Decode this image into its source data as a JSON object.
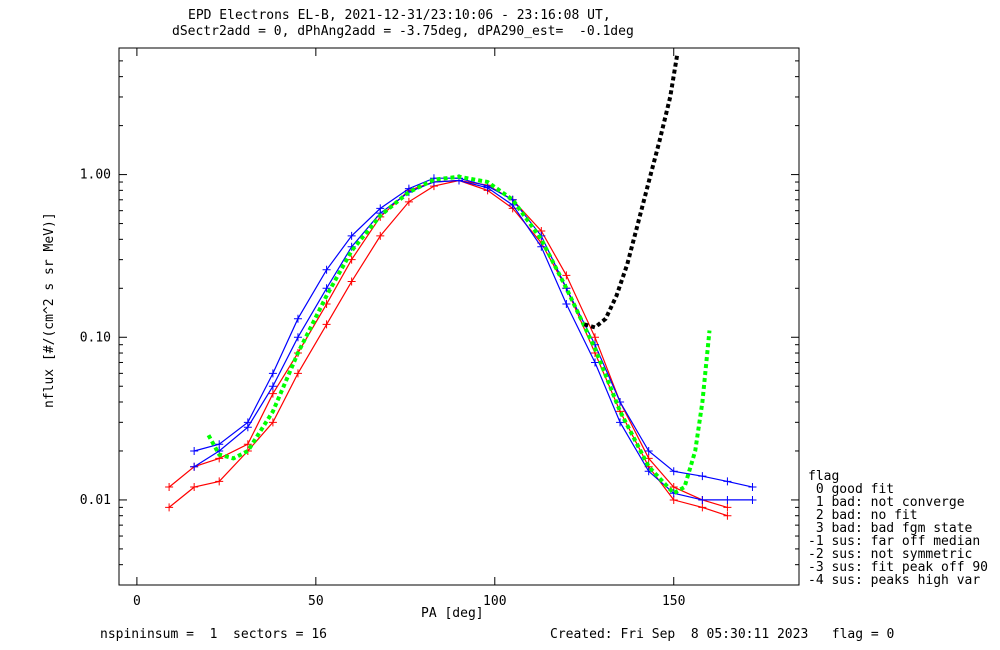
{
  "chart_data": {
    "type": "line",
    "title": "EPD Electrons EL-B, 2021-12-31/23:10:06 - 23:16:08 UT,",
    "subtitle": "dSectr2add = 0, dPhAng2add = -3.75deg, dPA290_est=  -0.1deg",
    "xlabel": "PA [deg]",
    "ylabel": "nflux [#/(cm^2 s sr MeV)]",
    "xlim": [
      -5,
      185
    ],
    "ylim": [
      0.003,
      6
    ],
    "yscale": "log",
    "x_ticks": [
      "0",
      "50",
      "100",
      "150"
    ],
    "y_ticks": [
      "0.01",
      "0.10",
      "1.00"
    ],
    "series": [
      {
        "color": "#ff0000",
        "values": [
          [
            9,
            0.012
          ],
          [
            16,
            0.016
          ],
          [
            23,
            0.018
          ],
          [
            31,
            0.022
          ],
          [
            38,
            0.045
          ],
          [
            45,
            0.08
          ],
          [
            53,
            0.16
          ],
          [
            60,
            0.3
          ],
          [
            68,
            0.55
          ],
          [
            76,
            0.8
          ],
          [
            83,
            0.9
          ],
          [
            90,
            0.92
          ],
          [
            98,
            0.8
          ],
          [
            105,
            0.62
          ],
          [
            113,
            0.38
          ],
          [
            120,
            0.2
          ],
          [
            128,
            0.08
          ],
          [
            135,
            0.035
          ],
          [
            143,
            0.016
          ],
          [
            150,
            0.01
          ],
          [
            158,
            0.009
          ],
          [
            165,
            0.008
          ]
        ]
      },
      {
        "color": "#ff0000",
        "values": [
          [
            9,
            0.009
          ],
          [
            16,
            0.012
          ],
          [
            23,
            0.013
          ],
          [
            31,
            0.02
          ],
          [
            38,
            0.03
          ],
          [
            45,
            0.06
          ],
          [
            53,
            0.12
          ],
          [
            60,
            0.22
          ],
          [
            68,
            0.42
          ],
          [
            76,
            0.68
          ],
          [
            83,
            0.85
          ],
          [
            90,
            0.92
          ],
          [
            98,
            0.86
          ],
          [
            105,
            0.7
          ],
          [
            113,
            0.45
          ],
          [
            120,
            0.24
          ],
          [
            128,
            0.1
          ],
          [
            135,
            0.04
          ],
          [
            143,
            0.018
          ],
          [
            150,
            0.012
          ],
          [
            158,
            0.01
          ],
          [
            165,
            0.009
          ]
        ]
      },
      {
        "color": "#0000ff",
        "values": [
          [
            16,
            0.02
          ],
          [
            23,
            0.022
          ],
          [
            31,
            0.03
          ],
          [
            38,
            0.06
          ],
          [
            45,
            0.13
          ],
          [
            53,
            0.26
          ],
          [
            60,
            0.42
          ],
          [
            68,
            0.62
          ],
          [
            76,
            0.82
          ],
          [
            83,
            0.95
          ],
          [
            90,
            0.95
          ],
          [
            98,
            0.85
          ],
          [
            105,
            0.7
          ],
          [
            113,
            0.42
          ],
          [
            120,
            0.2
          ],
          [
            128,
            0.09
          ],
          [
            135,
            0.04
          ],
          [
            143,
            0.02
          ],
          [
            150,
            0.015
          ],
          [
            158,
            0.014
          ],
          [
            165,
            0.013
          ],
          [
            172,
            0.012
          ]
        ]
      },
      {
        "color": "#0000ff",
        "values": [
          [
            16,
            0.016
          ],
          [
            23,
            0.02
          ],
          [
            31,
            0.028
          ],
          [
            38,
            0.05
          ],
          [
            45,
            0.1
          ],
          [
            53,
            0.2
          ],
          [
            60,
            0.36
          ],
          [
            68,
            0.58
          ],
          [
            76,
            0.78
          ],
          [
            83,
            0.9
          ],
          [
            90,
            0.92
          ],
          [
            98,
            0.83
          ],
          [
            105,
            0.65
          ],
          [
            113,
            0.36
          ],
          [
            120,
            0.16
          ],
          [
            128,
            0.07
          ],
          [
            135,
            0.03
          ],
          [
            143,
            0.015
          ],
          [
            150,
            0.011
          ],
          [
            158,
            0.01
          ],
          [
            165,
            0.01
          ],
          [
            172,
            0.01
          ]
        ]
      },
      {
        "color": "#00ff00",
        "dashed": true,
        "values": [
          [
            20,
            0.025
          ],
          [
            23,
            0.019
          ],
          [
            27,
            0.018
          ],
          [
            31,
            0.02
          ],
          [
            38,
            0.035
          ],
          [
            45,
            0.08
          ],
          [
            53,
            0.18
          ],
          [
            60,
            0.34
          ],
          [
            68,
            0.56
          ],
          [
            76,
            0.78
          ],
          [
            83,
            0.93
          ],
          [
            90,
            0.97
          ],
          [
            98,
            0.9
          ],
          [
            105,
            0.7
          ],
          [
            113,
            0.4
          ],
          [
            120,
            0.2
          ],
          [
            128,
            0.085
          ],
          [
            135,
            0.035
          ],
          [
            143,
            0.016
          ],
          [
            150,
            0.011
          ],
          [
            153,
            0.012
          ],
          [
            156,
            0.02
          ],
          [
            158,
            0.04
          ],
          [
            160,
            0.11
          ]
        ]
      },
      {
        "color": "#000000",
        "dashed": true,
        "values": [
          [
            125,
            0.12
          ],
          [
            128,
            0.115
          ],
          [
            131,
            0.13
          ],
          [
            134,
            0.18
          ],
          [
            137,
            0.28
          ],
          [
            140,
            0.5
          ],
          [
            143,
            0.9
          ],
          [
            146,
            1.6
          ],
          [
            149,
            3.0
          ],
          [
            151,
            5.5
          ]
        ]
      }
    ],
    "legend": {
      "title": "flag",
      "items": [
        " 0 good fit",
        " 1 bad: not converge",
        " 2 bad: no fit",
        " 3 bad: bad fgm state",
        "-1 sus: far off median",
        "-2 sus: not symmetric",
        "-3 sus: fit peak off 90",
        "-4 sus: peaks high var"
      ]
    },
    "grid": false
  },
  "footer": {
    "left": "nspininsum =  1  sectors = 16",
    "right": "Created: Fri Sep  8 05:30:11 2023   flag = 0"
  }
}
